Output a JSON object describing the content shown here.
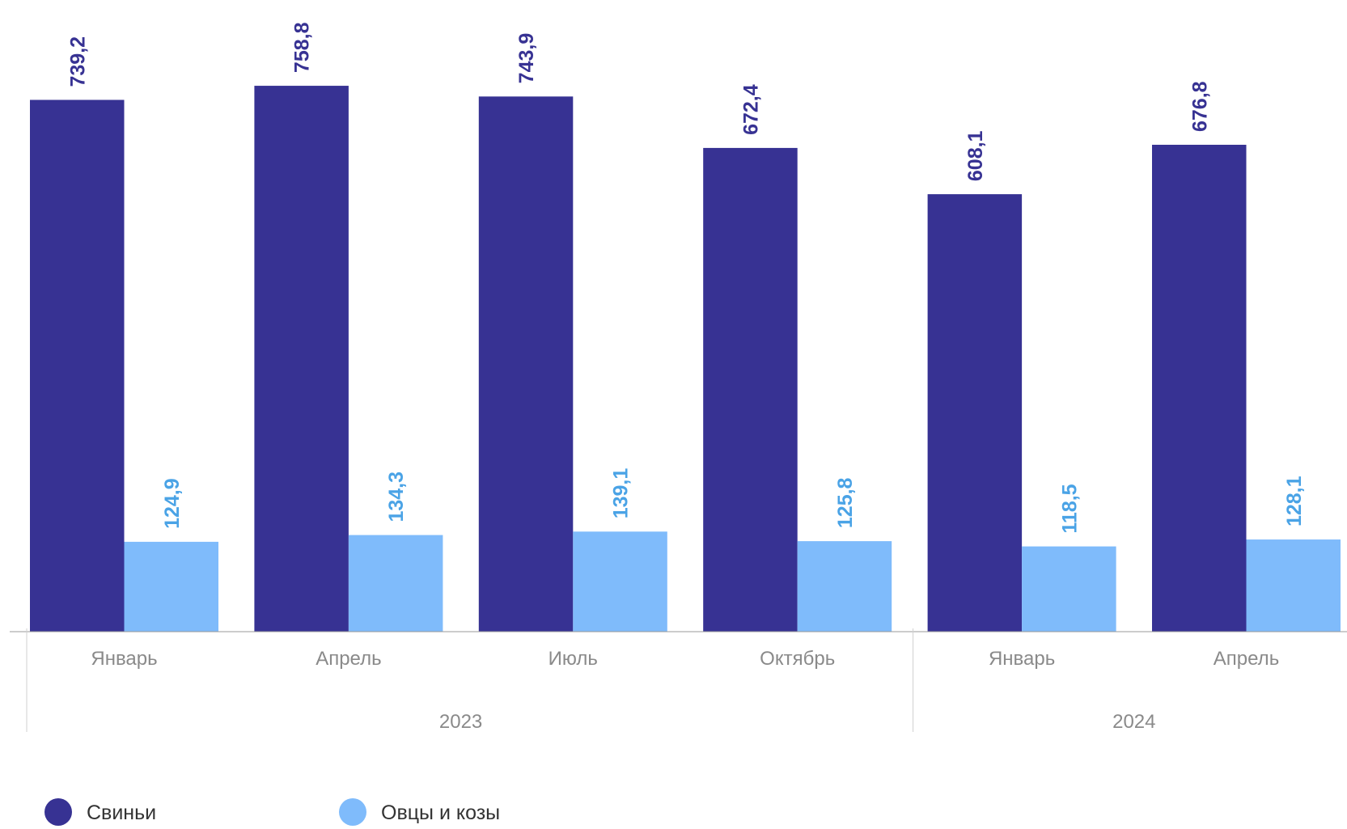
{
  "chart_data": {
    "type": "bar",
    "categories": [
      "Январь",
      "Апрель",
      "Июль",
      "Октябрь",
      "Январь",
      "Апрель"
    ],
    "groups": [
      {
        "label": "2023",
        "count": 4
      },
      {
        "label": "2024",
        "count": 2
      }
    ],
    "series": [
      {
        "name": "Свиньи",
        "color": "#373293",
        "values": [
          739.2,
          758.8,
          743.9,
          672.4,
          608.1,
          676.8
        ],
        "labels": [
          "739,2",
          "758,8",
          "743,9",
          "672,4",
          "608,1",
          "676,8"
        ]
      },
      {
        "name": "Овцы и козы",
        "color": "#7fbbfb",
        "label_color": "#4aa3e6",
        "values": [
          124.9,
          134.3,
          139.1,
          125.8,
          118.5,
          128.1
        ],
        "labels": [
          "124,9",
          "134,3",
          "139,1",
          "125,8",
          "118,5",
          "128,1"
        ]
      }
    ],
    "ylim": [
      0,
      760
    ],
    "grid": false,
    "legend_position": "bottom-left"
  }
}
